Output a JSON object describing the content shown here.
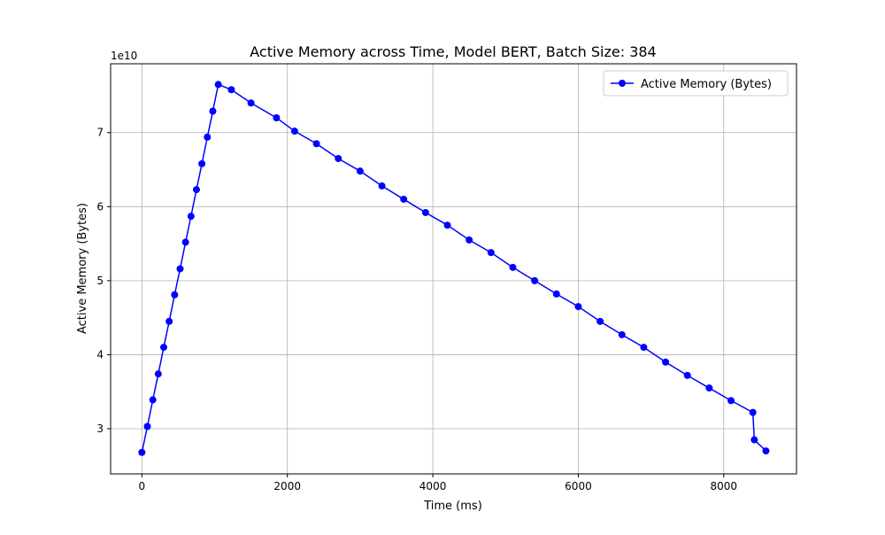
{
  "chart_data": {
    "type": "line",
    "title": "Active Memory across Time, Model BERT, Batch Size: 384",
    "x_label": "Time (ms)",
    "y_label": "Active Memory (Bytes)",
    "y_offset_label": "1e10",
    "x": [
      0,
      75,
      150,
      225,
      300,
      375,
      450,
      525,
      600,
      675,
      750,
      825,
      900,
      975,
      1050,
      1230,
      1500,
      1850,
      2100,
      2400,
      2700,
      3000,
      3300,
      3600,
      3900,
      4200,
      4500,
      4800,
      5100,
      5400,
      5700,
      6000,
      6300,
      6600,
      6900,
      7200,
      7500,
      7800,
      8100,
      8400,
      8420,
      8580
    ],
    "series": [
      {
        "name": "Active Memory (Bytes)",
        "color": "#0000ff",
        "values": [
          2.68,
          3.03,
          3.39,
          3.74,
          4.1,
          4.45,
          4.81,
          5.16,
          5.52,
          5.87,
          6.23,
          6.58,
          6.94,
          7.29,
          7.65,
          7.58,
          7.4,
          7.2,
          7.02,
          6.85,
          6.65,
          6.48,
          6.28,
          6.1,
          5.92,
          5.75,
          5.55,
          5.38,
          5.18,
          5.0,
          4.82,
          4.65,
          4.45,
          4.27,
          4.1,
          3.9,
          3.72,
          3.55,
          3.38,
          3.22,
          2.85,
          2.7
        ]
      }
    ],
    "xlim": [
      -430,
      9000
    ],
    "ylim": [
      2.39,
      7.93
    ],
    "xticks": [
      0,
      2000,
      4000,
      6000,
      8000
    ],
    "yticks": [
      3,
      4,
      5,
      6,
      7
    ],
    "grid": true,
    "legend": "upper-right"
  }
}
